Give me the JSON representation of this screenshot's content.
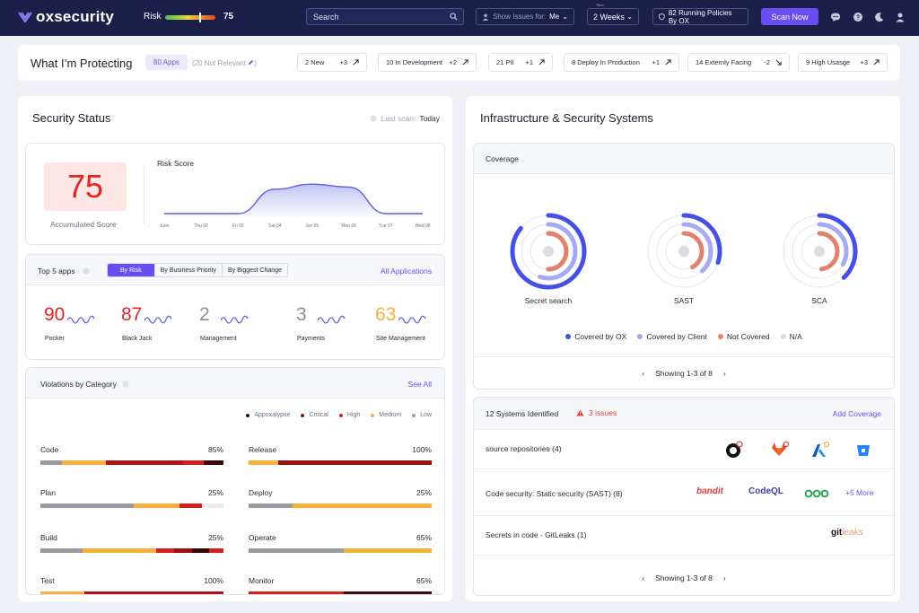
{
  "topbar": {
    "brand": "oxsecurity",
    "risk_label": "Risk",
    "risk_value": "75",
    "risk_level": 0.75,
    "search_placeholder": "Search",
    "show_issues_label": "Show Issues for:",
    "show_issues_value": "Me",
    "time_caption": "Time",
    "time_value": "2 Weeks",
    "policies_label": "82 Running Policies By OX",
    "scan_label": "Scan Now"
  },
  "protecting": {
    "title": "What I’m Protecting",
    "apps_badge": "80 Apps",
    "not_relevant": "(20 Not Relevant",
    "chips": [
      {
        "label": "2 New",
        "delta": "+3",
        "direction": "up"
      },
      {
        "label": "10 In Development",
        "delta": "+2",
        "direction": "up"
      },
      {
        "label": "21 PII",
        "delta": "+1",
        "direction": "up"
      },
      {
        "label": "8 Deploy In Production",
        "delta": "+1",
        "direction": "up"
      },
      {
        "label": "14 Externly Facing",
        "delta": "-2",
        "direction": "down"
      },
      {
        "label": "9 High Usasge",
        "delta": "+3",
        "direction": "up"
      }
    ]
  },
  "security_status": {
    "title": "Security Status",
    "last_scan_label": "Last scan:",
    "last_scan_value": "Today",
    "score_value": "75",
    "score_label": "Accumulated Score",
    "risk_score_title": "Risk Score"
  },
  "chart_data": {
    "type": "area",
    "title": "Risk Score",
    "categories": [
      "June",
      "Thu 02",
      "Fri 03",
      "Sat 04",
      "Jun 05",
      "Mon 06",
      "Tue 07",
      "Wed 08"
    ],
    "values": [
      10,
      10,
      10,
      78,
      92,
      84,
      10,
      10
    ],
    "ylim": [
      0,
      100
    ],
    "grid": false
  },
  "top_apps": {
    "title": "Top 5 apps",
    "tabs": [
      "By Risk",
      "By Business Priority",
      "By Biggest Change"
    ],
    "active_tab": "By Risk",
    "all_link": "All Applications",
    "apps": [
      {
        "score": "90",
        "name": "Pocker",
        "color": "#e12424"
      },
      {
        "score": "87",
        "name": "Black Jack",
        "color": "#e12424"
      },
      {
        "score": "2",
        "name": "Management",
        "color": "#8a8f9e"
      },
      {
        "score": "3",
        "name": "Payments",
        "color": "#8a8f9e"
      },
      {
        "score": "63",
        "name": "Site  Management",
        "color": "#f6b23c"
      }
    ]
  },
  "violations": {
    "title": "Violations by Category",
    "see_all": "See All",
    "legend": [
      {
        "label": "Appoxalypse",
        "color": "#3a0808"
      },
      {
        "label": "Critical",
        "color": "#9c0f0f"
      },
      {
        "label": "High",
        "color": "#d81f1f"
      },
      {
        "label": "Medium",
        "color": "#f6b23c"
      },
      {
        "label": "Low",
        "color": "#9a9aa2"
      }
    ],
    "categories": [
      {
        "name": "Code",
        "pct": "85%",
        "segments": [
          [
            "#9a9aa2",
            12
          ],
          [
            "#f6b23c",
            24
          ],
          [
            "#b01414",
            42
          ],
          [
            "#d81f1f",
            11
          ],
          [
            "#3a0808",
            11
          ]
        ]
      },
      {
        "name": "Release",
        "pct": "100%",
        "segments": [
          [
            "#f6b23c",
            16
          ],
          [
            "#9c0f0f",
            84
          ]
        ]
      },
      {
        "name": "Plan",
        "pct": "25%",
        "segments": [
          [
            "#9a9aa2",
            51
          ],
          [
            "#f6b23c",
            25
          ],
          [
            "#d81f1f",
            12
          ],
          [
            "#ececf0",
            12
          ]
        ]
      },
      {
        "name": "Deploy",
        "pct": "25%",
        "segments": [
          [
            "#9a9aa2",
            24
          ],
          [
            "#f6b23c",
            76
          ]
        ]
      },
      {
        "name": "Build",
        "pct": "25%",
        "segments": [
          [
            "#9a9aa2",
            23
          ],
          [
            "#f6b23c",
            40
          ],
          [
            "#d81f1f",
            10
          ],
          [
            "#9c0f0f",
            10
          ],
          [
            "#3a0808",
            9
          ],
          [
            "#d81f1f",
            8
          ]
        ]
      },
      {
        "name": "Operate",
        "pct": "65%",
        "segments": [
          [
            "#9a9aa2",
            52
          ],
          [
            "#f6b23c",
            48
          ]
        ]
      },
      {
        "name": "Test",
        "pct": "100%",
        "segments": [
          [
            "#f6b23c",
            24
          ],
          [
            "#b01414",
            76
          ]
        ]
      },
      {
        "name": "Monitor",
        "pct": "65%",
        "segments": [
          [
            "#d81f1f",
            52
          ],
          [
            "#3a0808",
            48
          ]
        ]
      }
    ]
  },
  "infra": {
    "title": "Infrastructure & Security Systems",
    "coverage_title": "Coverage",
    "rings": [
      {
        "name": "Secret search",
        "covered_ox": 0.86,
        "covered_client": 0.55,
        "not_covered": 0.5
      },
      {
        "name": "SAST",
        "covered_ox": 0.3,
        "covered_client": 0.38,
        "not_covered": 0.42
      },
      {
        "name": "SCA",
        "covered_ox": 0.38,
        "covered_client": 0.33,
        "not_covered": 0.48
      }
    ],
    "coverage_legend": [
      {
        "label": "Covered by OX",
        "color": "#4450e6"
      },
      {
        "label": "Covered by Client",
        "color": "#a6aaf2"
      },
      {
        "label": "Not Covered",
        "color": "#e0826e"
      },
      {
        "label": "N/A",
        "color": "#dcdde2"
      }
    ],
    "coverage_pager": "Showing 1-3 of 8",
    "systems_title": "12 Systems Identified",
    "systems_issues": "3 issues",
    "add_coverage": "Add Coverage",
    "rows": [
      {
        "label": "source repositories (4)"
      },
      {
        "label": "Code security: Static security (SAST) (8)"
      },
      {
        "label": "Secrets in code - GitLeaks (1)"
      }
    ],
    "tools": {
      "bandit": "bandit",
      "codeql": "CodeQL",
      "more": "+5 More",
      "gitleaks_a": "git",
      "gitleaks_b": "leaks"
    },
    "systems_pager": "Showing 1-3 of 8"
  }
}
